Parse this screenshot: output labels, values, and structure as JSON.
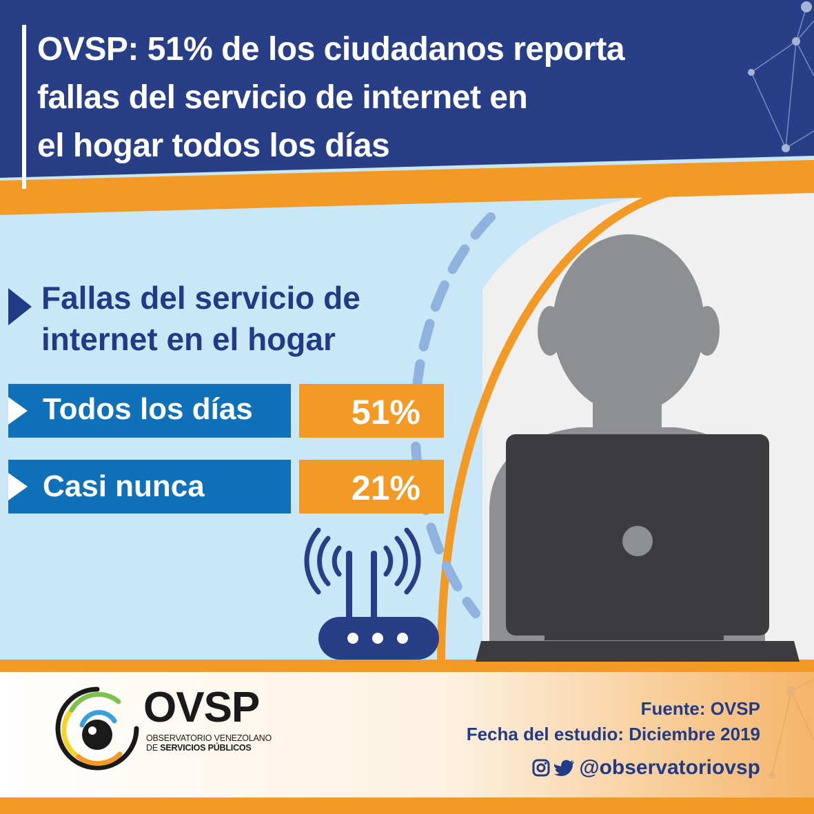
{
  "header": {
    "title_lines": [
      "OVSP: 51% de los ciudadanos reporta",
      "fallas del servicio de internet en",
      "el hogar todos los días"
    ]
  },
  "subtitle_lines": [
    "Fallas del servicio de",
    "internet en el hogar"
  ],
  "stats": [
    {
      "label": "Todos los días",
      "value": "51%"
    },
    {
      "label": "Casi nunca",
      "value": "21%"
    }
  ],
  "footer": {
    "logo_text": "OVSP",
    "logo_sub_line1": "OBSERVATORIO VENEZOLANO",
    "logo_sub_line2_prefix": "DE ",
    "logo_sub_line2_bold": "SERVICIOS PÚBLICOS",
    "source": "Fuente: OVSP",
    "study_date": "Fecha del estudio: Diciembre 2019",
    "social_handle": "@observatoriovsp"
  },
  "colors": {
    "header_blue": "#283f88",
    "accent_orange": "#f29a25",
    "light_blue": "#c9e7f7",
    "row_blue": "#1070b8",
    "text_navy": "#223b86",
    "silhouette_gray": "#8e8f92",
    "laptop_dark": "#3c3c3e"
  },
  "icons": [
    "instagram-icon",
    "twitter-icon",
    "wifi-router-icon",
    "person-silhouette",
    "laptop-icon",
    "network-lines-decoration"
  ]
}
